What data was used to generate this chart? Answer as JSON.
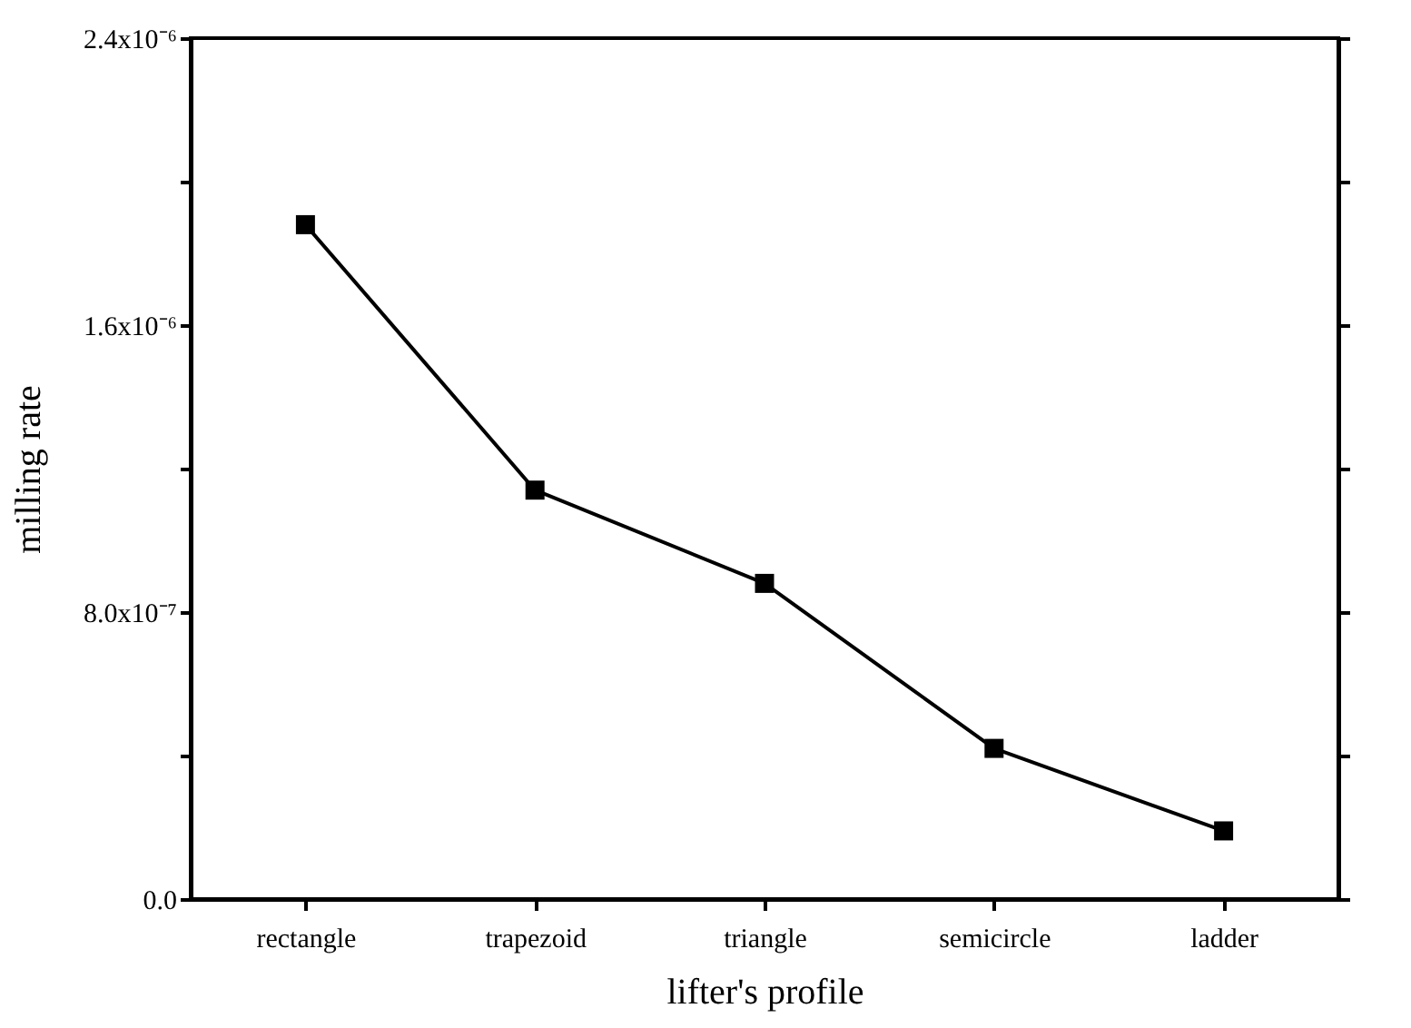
{
  "chart_data": {
    "type": "line",
    "xlabel": "lifter's profile",
    "ylabel": "milling rate",
    "categories": [
      "rectangle",
      "trapezoid",
      "triangle",
      "semicircle",
      "ladder"
    ],
    "series": [
      {
        "color": "#000000",
        "values": [
          1.88e-06,
          1.14e-06,
          8.8e-07,
          4.2e-07,
          1.9e-07
        ]
      }
    ],
    "ylim": [
      0,
      2.4e-06
    ],
    "yticks": [
      {
        "value": 0,
        "label": "0.0"
      },
      {
        "value": 4e-07,
        "label": null
      },
      {
        "value": 8e-07,
        "label": "8.0x10⁻⁷"
      },
      {
        "value": 1.2e-06,
        "label": null
      },
      {
        "value": 1.6e-06,
        "label": "1.6x10⁻⁶"
      },
      {
        "value": 2e-06,
        "label": null
      },
      {
        "value": 2.4e-06,
        "label": "2.4x10⁻⁶"
      }
    ],
    "marker": "square",
    "line_style": "solid",
    "grid": false,
    "legend": false
  }
}
